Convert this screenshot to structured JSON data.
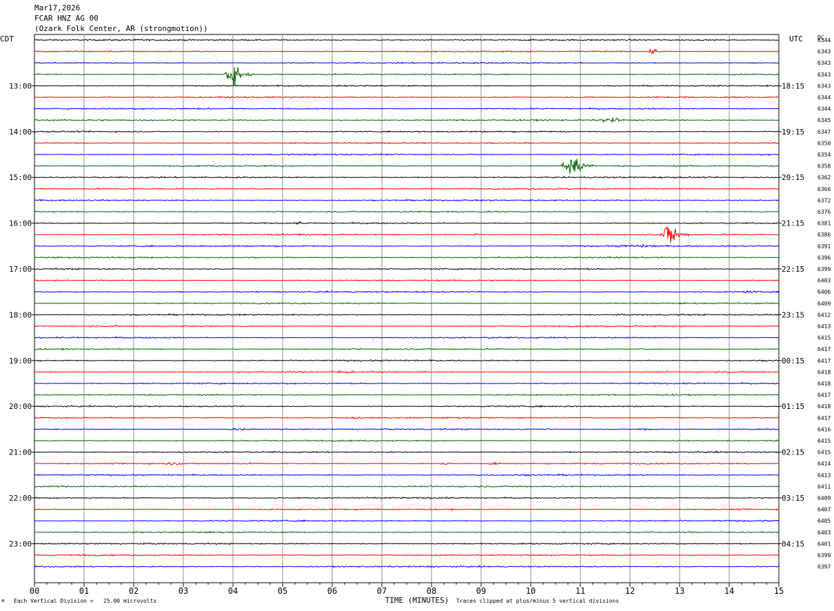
{
  "header": {
    "date": "Mar17,2026",
    "channel": "FCAR HNZ AG 00",
    "station": "(Ozark Folk Center, AR (strongmotion))"
  },
  "left_tz": "CDT",
  "right_tz": "UTC",
  "dc_label": "DC",
  "footer": {
    "scale_note": "Each Vertical Division =   25.00 microvolts",
    "clip_note": "Traces clipped at plus/minus 5 vertical divisions",
    "corner_mark": "⌘"
  },
  "chart_data": {
    "type": "line",
    "title": "",
    "xlabel": "TIME (MINUTES)",
    "ylabel": "",
    "xlim": [
      0,
      15
    ],
    "x_ticks": [
      "00",
      "01",
      "02",
      "03",
      "04",
      "05",
      "06",
      "07",
      "08",
      "09",
      "10",
      "11",
      "12",
      "13",
      "14",
      "15"
    ],
    "left_hour_labels": [
      "13:00",
      "14:00",
      "15:00",
      "16:00",
      "17:00",
      "18:00",
      "19:00",
      "20:00",
      "21:00",
      "22:00",
      "23:00"
    ],
    "right_hour_labels": [
      "18:15",
      "19:15",
      "20:15",
      "21:15",
      "22:15",
      "23:15",
      "00:15",
      "01:15",
      "02:15",
      "03:15",
      "04:15"
    ],
    "trace_colors": [
      "#000000",
      "#ff0000",
      "#0000ff",
      "#006400"
    ],
    "dc_offsets": [
      "6344",
      "6343",
      "6343",
      "6343",
      "6343",
      "6344",
      "6344",
      "6345",
      "6347",
      "6350",
      "6354",
      "6358",
      "6362",
      "6366",
      "6372",
      "6376",
      "6381",
      "6386",
      "6391",
      "6396",
      "6399",
      "6403",
      "6406",
      "6409",
      "6412",
      "6413",
      "6415",
      "6417",
      "6417",
      "6418",
      "6418",
      "6417",
      "6418",
      "6417",
      "6416",
      "6415",
      "6415",
      "6414",
      "6413",
      "6411",
      "6409",
      "6407",
      "6405",
      "6403",
      "6401",
      "6399",
      "6397"
    ],
    "events": [
      {
        "trace": 3,
        "start_min": 3.8,
        "end_min": 4.4,
        "amplitude_div": 5
      },
      {
        "trace": 11,
        "start_min": 10.6,
        "end_min": 11.3,
        "amplitude_div": 5
      },
      {
        "trace": 17,
        "start_min": 12.6,
        "end_min": 13.2,
        "amplitude_div": 5
      },
      {
        "trace": 1,
        "start_min": 12.3,
        "end_min": 12.8,
        "amplitude_div": 1
      },
      {
        "trace": 7,
        "start_min": 11.3,
        "end_min": 12.2,
        "amplitude_div": 1
      },
      {
        "trace": 18,
        "start_min": 11.4,
        "end_min": 13.5,
        "amplitude_div": 0.6
      },
      {
        "trace": 16,
        "start_min": 5.2,
        "end_min": 5.6,
        "amplitude_div": 0.6
      },
      {
        "trace": 33,
        "start_min": 6.2,
        "end_min": 6.9,
        "amplitude_div": 0.6
      },
      {
        "trace": 37,
        "start_min": 2.5,
        "end_min": 3.3,
        "amplitude_div": 0.6
      },
      {
        "trace": 37,
        "start_min": 8.1,
        "end_min": 8.6,
        "amplitude_div": 0.6
      },
      {
        "trace": 37,
        "start_min": 9.1,
        "end_min": 9.6,
        "amplitude_div": 0.8
      },
      {
        "trace": 34,
        "start_min": 3.8,
        "end_min": 4.8,
        "amplitude_div": 0.5
      },
      {
        "trace": 34,
        "start_min": 12.0,
        "end_min": 13.0,
        "amplitude_div": 0.5
      },
      {
        "trace": 29,
        "start_min": 5.8,
        "end_min": 7.0,
        "amplitude_div": 0.6
      },
      {
        "trace": 17,
        "start_min": 8.8,
        "end_min": 9.1,
        "amplitude_div": 0.6
      },
      {
        "trace": 22,
        "start_min": 14.0,
        "end_min": 15.0,
        "amplitude_div": 0.5
      }
    ]
  }
}
